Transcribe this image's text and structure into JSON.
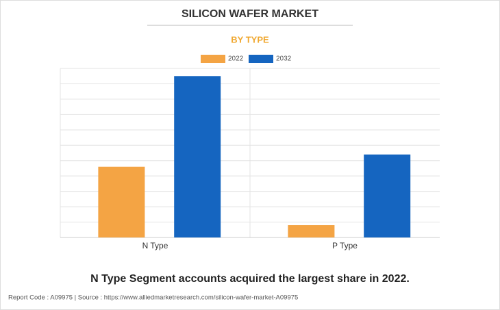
{
  "chart_data": {
    "type": "bar",
    "title": "SILICON WAFER MARKET",
    "subtitle": "BY TYPE",
    "categories": [
      "N Type",
      "P Type"
    ],
    "series": [
      {
        "name": "2022",
        "color": "#f4a444",
        "values": [
          4.6,
          0.8
        ]
      },
      {
        "name": "2032",
        "color": "#1565c0",
        "values": [
          10.5,
          5.4
        ]
      }
    ],
    "ylim": [
      0,
      11
    ],
    "grid": true,
    "grid_count": 11,
    "caption": "N Type Segment accounts acquired the largest share in 2022.",
    "footer": "Report Code : A09975  |  Source : https://www.alliedmarketresearch.com/silicon-wafer-market-A09975"
  }
}
